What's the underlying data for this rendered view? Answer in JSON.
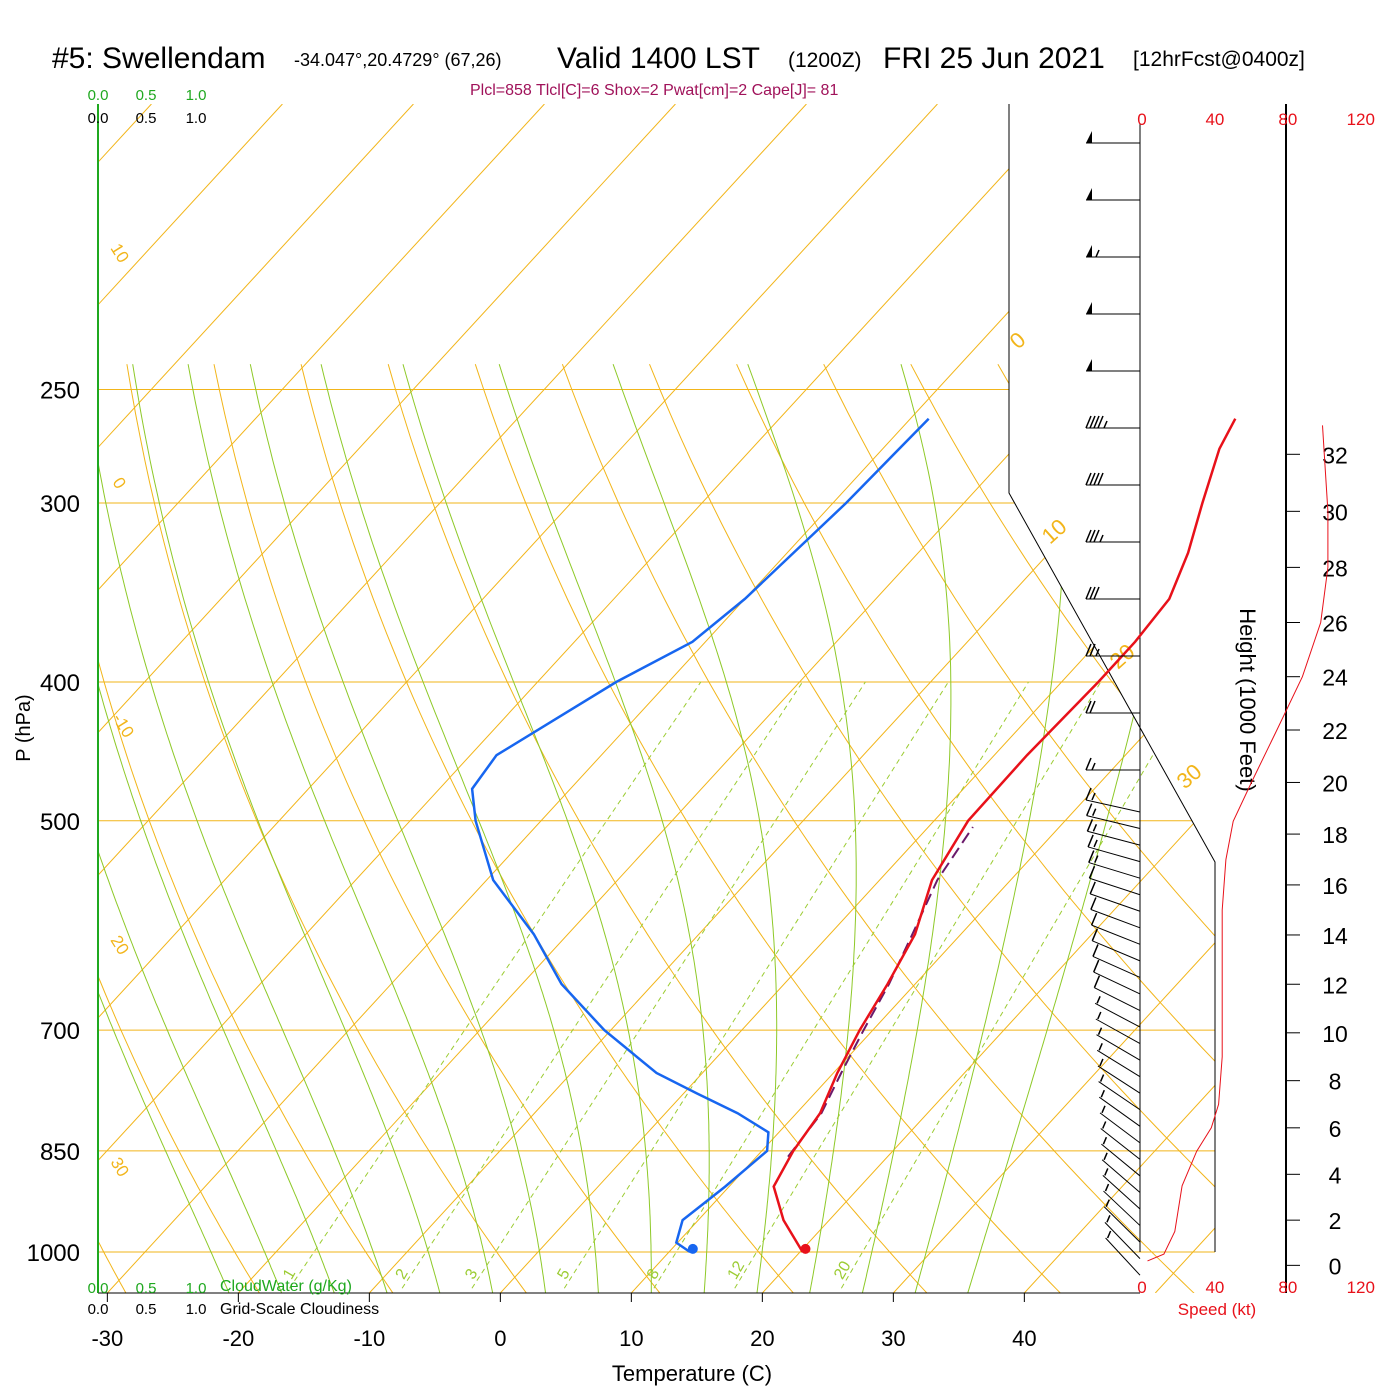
{
  "header": {
    "station": "#5: Swellendam",
    "coords": "-34.047°,20.4729° (67,26)",
    "valid": "Valid 1400 LST",
    "utc": "(1200Z)",
    "date": "FRI 25 Jun 2021",
    "forecast": "[12hrFcst@0400z]",
    "stats": "Plcl=858 Tlcl[C]=6 Shox=2 Pwat[cm]=2 Cape[J]= 81"
  },
  "labels": {
    "cloudwater_scale": [
      "0.0",
      "0.5",
      "1.0"
    ],
    "cloudiness_scale": [
      "0.0",
      "0.5",
      "1.0"
    ],
    "cloudwater_label": "CloudWater (g/Kg)",
    "cloudiness_label": "Grid-Scale Cloudiness",
    "speed_label": "Speed (kt)"
  },
  "colors": {
    "isotherm": "#f2b51a",
    "dry_adiabat": "#f2b51a",
    "moist_adiabat": "#8ec928",
    "mixing_ratio": "#9ccc33",
    "temperature": "#e8111a",
    "dewpoint": "#1766f0",
    "parcel": "#6b1a6b",
    "cloud_green": "#1fa81f",
    "speed": "#e8111a"
  },
  "chart_data": {
    "type": "line",
    "subtype": "skew-T log-P sounding",
    "xlabel": "Temperature (C)",
    "ylabel": "P (hPa)",
    "y2label": "Height (1000 Feet)",
    "x_ticks": [
      -30,
      -20,
      -10,
      0,
      10,
      20,
      30,
      40
    ],
    "pressure_ticks": [
      250,
      300,
      400,
      500,
      700,
      850,
      1000
    ],
    "height_ticks": [
      0,
      2,
      4,
      6,
      8,
      10,
      12,
      14,
      16,
      18,
      20,
      22,
      24,
      26,
      28,
      30,
      32
    ],
    "speed_ticks": [
      0,
      40,
      80,
      120
    ],
    "dry_adiabat_labels": [
      30,
      20,
      10,
      0,
      -10,
      -20,
      -30
    ],
    "isotherm_labels": [
      0,
      10,
      20,
      30
    ],
    "mixing_ratio_labels": [
      1,
      2,
      3,
      5,
      8,
      12,
      20
    ],
    "series": [
      {
        "name": "temperature",
        "points": [
          [
            1000,
            20.2
          ],
          [
            950,
            16.5
          ],
          [
            900,
            13.4
          ],
          [
            850,
            12.4
          ],
          [
            800,
            11.8
          ],
          [
            750,
            10.3
          ],
          [
            700,
            9.0
          ],
          [
            650,
            7.9
          ],
          [
            600,
            6.5
          ],
          [
            550,
            4.0
          ],
          [
            500,
            2.6
          ],
          [
            450,
            2.5
          ],
          [
            400,
            2.8
          ],
          [
            375,
            2.8
          ],
          [
            350,
            2.4
          ],
          [
            325,
            0.6
          ],
          [
            300,
            -1.8
          ],
          [
            275,
            -4.3
          ],
          [
            262,
            -5.2
          ]
        ]
      },
      {
        "name": "dewpoint",
        "points": [
          [
            1000,
            11.6
          ],
          [
            985,
            9.9
          ],
          [
            950,
            8.8
          ],
          [
            900,
            9.7
          ],
          [
            850,
            10.4
          ],
          [
            825,
            9.2
          ],
          [
            800,
            5.5
          ],
          [
            775,
            1.0
          ],
          [
            750,
            -3.5
          ],
          [
            700,
            -10.5
          ],
          [
            650,
            -17.0
          ],
          [
            600,
            -22.6
          ],
          [
            550,
            -29.5
          ],
          [
            500,
            -35.0
          ],
          [
            475,
            -37.5
          ],
          [
            450,
            -38.0
          ],
          [
            400,
            -34.0
          ],
          [
            375,
            -31.0
          ],
          [
            350,
            -30.0
          ],
          [
            300,
            -29.0
          ],
          [
            262,
            -28.6
          ]
        ]
      },
      {
        "name": "parcel",
        "points": [
          [
            858,
            12.4
          ],
          [
            800,
            11.9
          ],
          [
            750,
            10.6
          ],
          [
            700,
            9.3
          ],
          [
            650,
            8.0
          ],
          [
            600,
            6.3
          ],
          [
            550,
            4.4
          ],
          [
            505,
            3.4
          ]
        ]
      }
    ],
    "wind_speed_profile": [
      [
        0.2,
        3
      ],
      [
        0.5,
        12
      ],
      [
        1.5,
        18
      ],
      [
        3.5,
        22
      ],
      [
        5,
        30
      ],
      [
        6,
        38
      ],
      [
        7,
        42
      ],
      [
        9,
        44
      ],
      [
        11,
        44
      ],
      [
        13,
        44
      ],
      [
        15,
        44
      ],
      [
        17,
        46
      ],
      [
        18.5,
        50
      ],
      [
        20,
        60
      ],
      [
        22,
        74
      ],
      [
        24,
        88
      ],
      [
        26,
        98
      ],
      [
        28,
        102
      ],
      [
        30,
        102
      ],
      [
        32,
        100
      ],
      [
        33,
        99
      ]
    ],
    "wind_barbs_kt": [
      50,
      50,
      55,
      50,
      50,
      45,
      40,
      35,
      30,
      25,
      20,
      15,
      15,
      15,
      15,
      15,
      15,
      10,
      10,
      10,
      10,
      10,
      10,
      10,
      10,
      5,
      5,
      5,
      5,
      5,
      5,
      5,
      5,
      5,
      5,
      5,
      5,
      5,
      5,
      5,
      5
    ]
  }
}
